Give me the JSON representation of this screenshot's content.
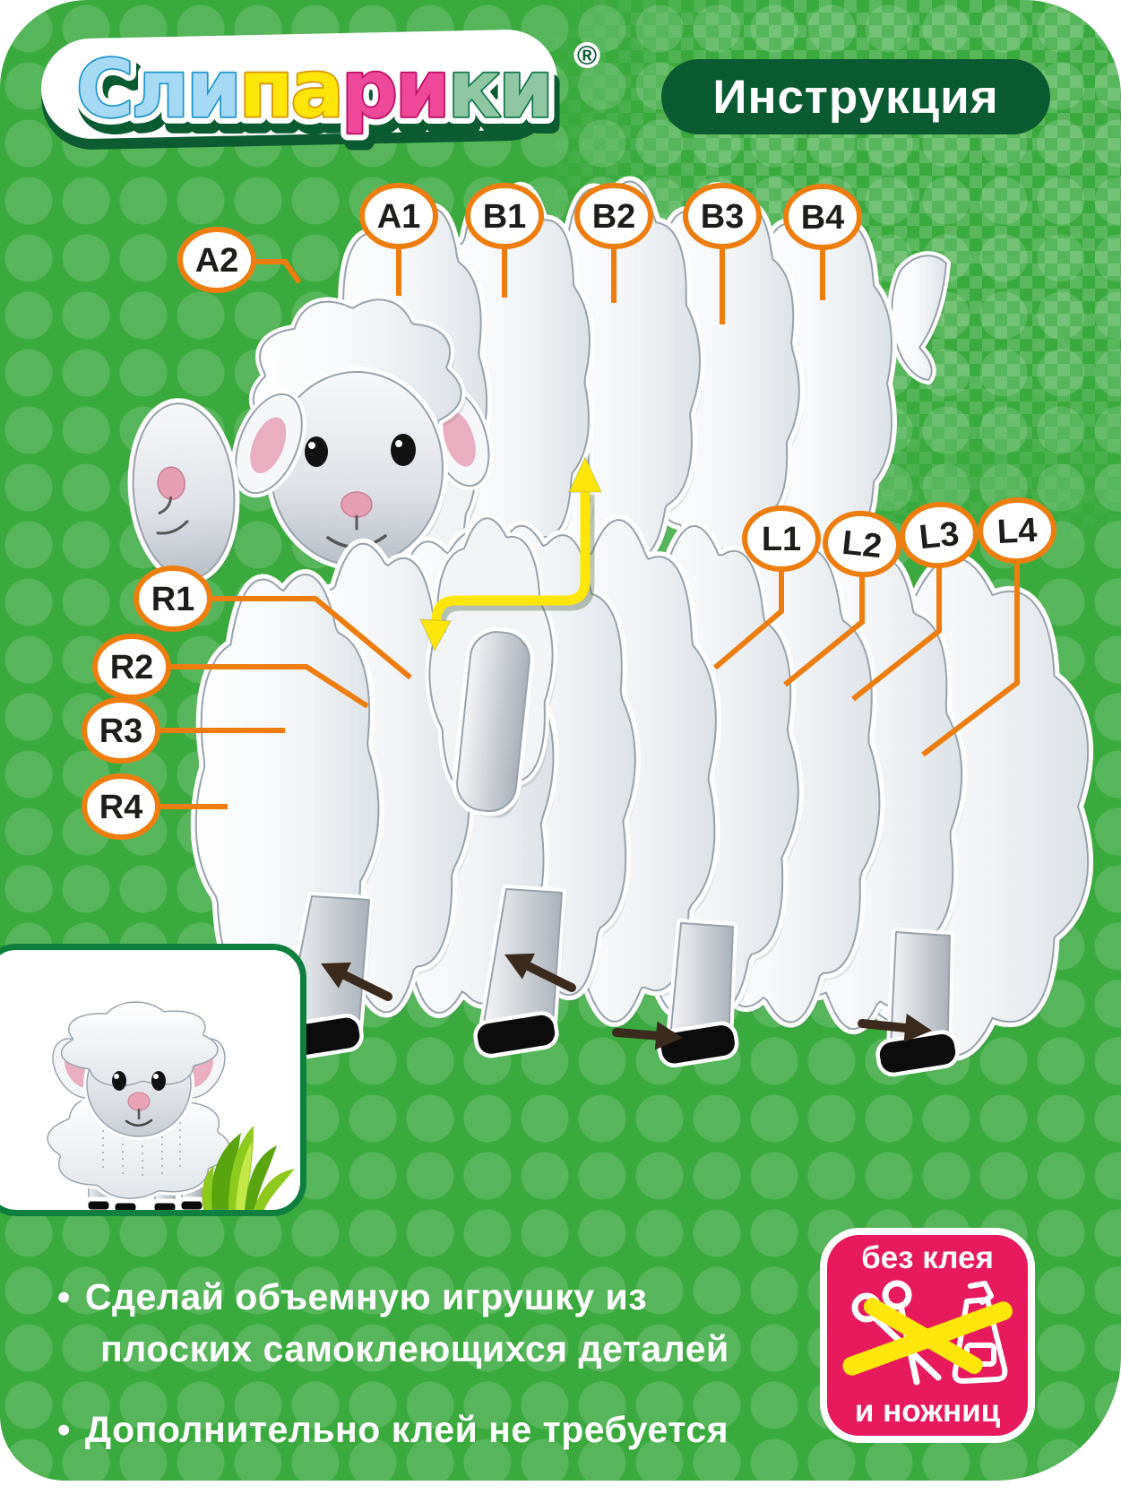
{
  "header": {
    "logo_text": "Слипарики",
    "logo_reg": "®",
    "logo_segments": [
      {
        "text": "Сли",
        "fill": "#a6d9f4",
        "stroke": "#2196cc"
      },
      {
        "text": "па",
        "fill": "#ffe60a",
        "stroke": "#d69400"
      },
      {
        "text": "ри",
        "fill": "#ee4899",
        "stroke": "#bf0d63"
      },
      {
        "text": "ки",
        "fill": "#8fc7a4",
        "stroke": "#13784a"
      }
    ],
    "title": "Инструкция"
  },
  "diagram": {
    "part_labels": [
      "A2",
      "A1",
      "B1",
      "B2",
      "B3",
      "B4",
      "L1",
      "L2",
      "L3",
      "L4",
      "R1",
      "R2",
      "R3",
      "R4"
    ],
    "label_fill": "#ffffff",
    "label_text_color": "#1d1d1b",
    "label_border_color": "#ee7d10",
    "leader_color": "#ee7d10",
    "assembly_arrow_color": "#ffe60a",
    "hoof_arrow_color": "#3a2b1e"
  },
  "notes": {
    "bullet_char": "•",
    "items": [
      {
        "line1": "Сделай объемную игрушку из",
        "line2": "плоских самоклеющихся деталей"
      },
      {
        "line1": "Дополнительно клей не требуется",
        "line2": ""
      }
    ]
  },
  "badge": {
    "top_text": "без клея",
    "bottom_text": "и ножниц",
    "bg_color": "#e61a5c",
    "cross_color": "#ffe60a",
    "icons": [
      "scissors-icon",
      "glue-bottle-icon",
      "cross-out-x-icon"
    ]
  },
  "colors": {
    "card_green": "#3aa93e",
    "pill_dark_green": "#0a5a32",
    "accent_orange": "#ee7d10",
    "arrow_yellow": "#ffe60a",
    "badge_pink": "#e61a5c"
  }
}
